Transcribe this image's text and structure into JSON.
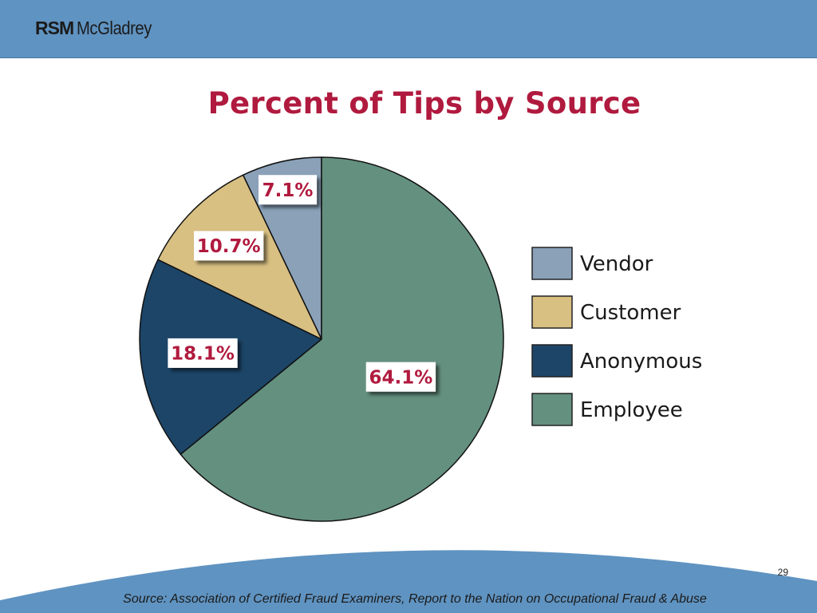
{
  "header": {
    "logo_rsm": "RSM",
    "logo_name": "McGladrey",
    "brand_color": "#5f93c1"
  },
  "page_number": "29",
  "source": "Source: Association of Certified Fraud Examiners, Report to the Nation on Occupational Fraud & Abuse",
  "chart_data": {
    "type": "pie",
    "title": "Percent of Tips by Source",
    "slices": [
      {
        "label": "Vendor",
        "value": 7.1,
        "display": "7.1%",
        "color": "#8aa1b8"
      },
      {
        "label": "Customer",
        "value": 10.7,
        "display": "10.7%",
        "color": "#d8bf82"
      },
      {
        "label": "Anonymous",
        "value": 18.1,
        "display": "18.1%",
        "color": "#1c4568"
      },
      {
        "label": "Employee",
        "value": 64.1,
        "display": "64.1%",
        "color": "#649080"
      }
    ],
    "legend_position": "right",
    "label_color": "#b01a3e"
  }
}
